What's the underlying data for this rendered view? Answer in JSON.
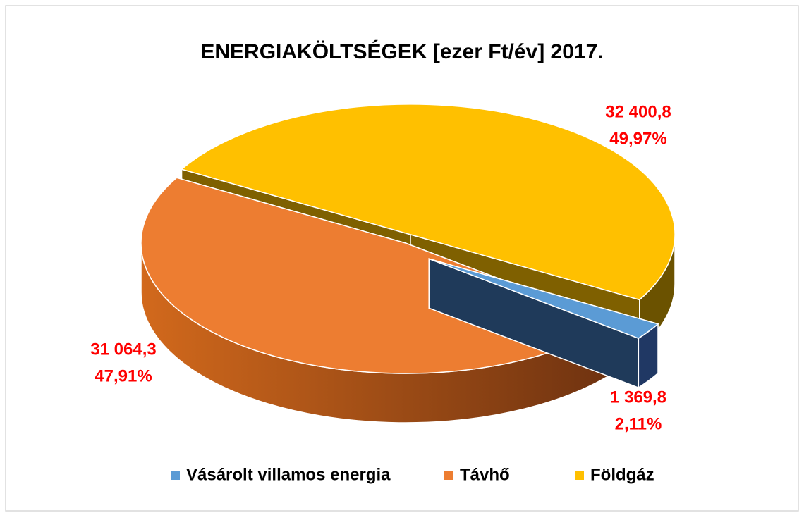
{
  "chart_data": {
    "type": "pie3d",
    "title": "ENERGIAKÖLTSÉGEK [ezer Ft/év] 2017.",
    "categories": [
      "Vásárolt villamos energia",
      "Távhő",
      "Földgáz"
    ],
    "values": [
      1369.8,
      31064.3,
      32400.8
    ],
    "value_labels": [
      "1 369,8",
      "31 064,3",
      "32 400,8"
    ],
    "percents": [
      2.11,
      47.91,
      49.97
    ],
    "percent_labels": [
      "2,11%",
      "47,91%",
      "49,97%"
    ],
    "colors": [
      "#5b9bd5",
      "#ed7d31",
      "#ffc000"
    ],
    "legend": "bottom"
  }
}
